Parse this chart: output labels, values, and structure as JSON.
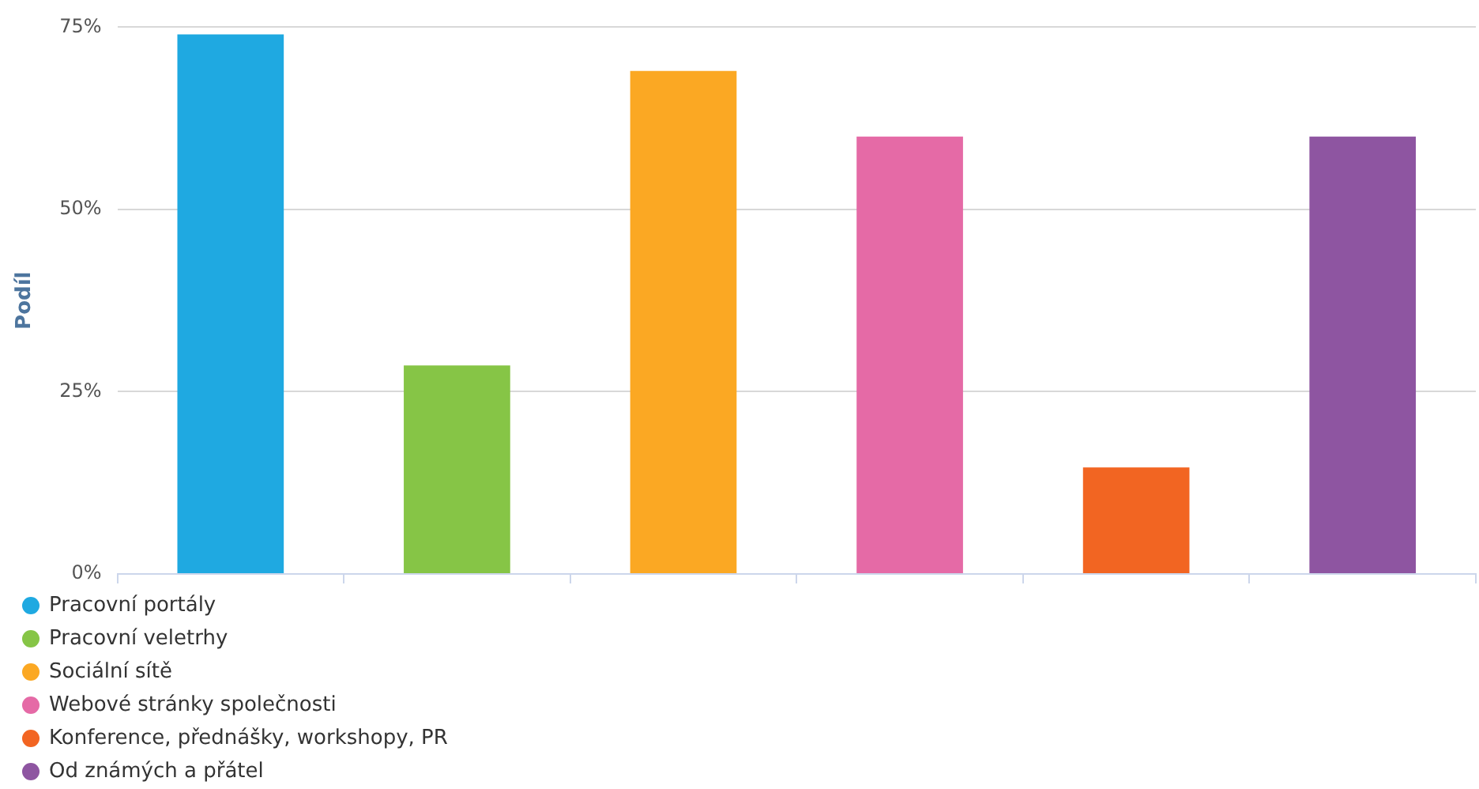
{
  "chart_data": {
    "type": "bar",
    "ylabel": "Podíl",
    "categories": [
      null,
      null,
      null,
      null,
      null,
      null
    ],
    "series": [
      {
        "name": "Pracovní portály",
        "color": "#1fa9e1",
        "values": [
          74,
          null,
          null,
          null,
          null,
          null
        ]
      },
      {
        "name": "Pracovní veletrhy",
        "color": "#86c546",
        "values": [
          null,
          28.6,
          null,
          null,
          null,
          null
        ]
      },
      {
        "name": "Sociální sítě",
        "color": "#fba823",
        "values": [
          null,
          null,
          69,
          null,
          null,
          null
        ]
      },
      {
        "name": "Webové stránky společnosti",
        "color": "#e56aa6",
        "values": [
          null,
          null,
          null,
          60,
          null,
          null
        ]
      },
      {
        "name": "Konference, přednášky, workshopy, PR",
        "color": "#f26522",
        "values": [
          null,
          null,
          null,
          null,
          14.6,
          null
        ]
      },
      {
        "name": "Od známých a přátel",
        "color": "#8e55a1",
        "values": [
          null,
          null,
          null,
          null,
          null,
          60
        ]
      }
    ],
    "ylim": [
      0,
      75
    ],
    "yticks": [
      {
        "value": 0,
        "label": "0%"
      },
      {
        "value": 25,
        "label": "25%"
      },
      {
        "value": 50,
        "label": "50%"
      },
      {
        "value": 75,
        "label": "75%"
      }
    ],
    "grid": "y",
    "legend": "bottom left",
    "tick_labels": "y"
  }
}
